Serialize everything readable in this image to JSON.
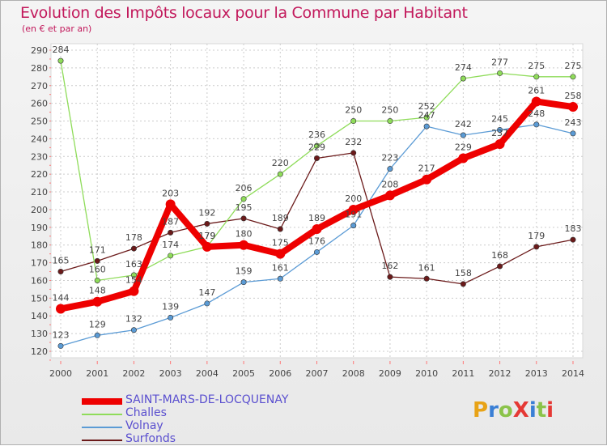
{
  "header": {
    "title": "Evolution des Impôts locaux pour la Commune par Habitant",
    "subtitle": "(en € et par an)"
  },
  "logo": {
    "text": "ProXiti",
    "colors": [
      "#e8a317",
      "#3a7fd5",
      "#8bc34a",
      "#e53935",
      "#3a7fd5",
      "#8bc34a",
      "#e53935"
    ]
  },
  "chart_data": {
    "type": "line",
    "x": [
      "2000",
      "2001",
      "2002",
      "2003",
      "2004",
      "2005",
      "2006",
      "2007",
      "2008",
      "2009",
      "2010",
      "2011",
      "2012",
      "2013",
      "2014"
    ],
    "ylim": [
      120,
      290
    ],
    "yticks": [
      120,
      130,
      140,
      150,
      160,
      170,
      180,
      190,
      200,
      210,
      220,
      230,
      240,
      250,
      260,
      270,
      280,
      290
    ],
    "grid": true,
    "legend_position": "bottom-left",
    "series": [
      {
        "name": "Surfonds",
        "color": "#6b1a1a",
        "values": [
          165,
          171,
          178,
          187,
          192,
          195,
          189,
          229,
          232,
          162,
          161,
          158,
          168,
          179,
          183
        ]
      },
      {
        "name": "Volnay",
        "color": "#5b9bd5",
        "values": [
          123,
          129,
          132,
          139,
          147,
          159,
          161,
          176,
          191,
          223,
          247,
          242,
          245,
          248,
          243
        ]
      },
      {
        "name": "Challes",
        "color": "#8fdc5a",
        "values": [
          284,
          160,
          163,
          174,
          179,
          206,
          220,
          236,
          250,
          250,
          252,
          274,
          277,
          275,
          275
        ]
      },
      {
        "name": "SAINT-MARS-DE-LOCQUENAY",
        "color": "#ee0000",
        "values": [
          144,
          148,
          154,
          203,
          179,
          180,
          175,
          189,
          200,
          208,
          217,
          229,
          237,
          261,
          258
        ]
      }
    ]
  }
}
